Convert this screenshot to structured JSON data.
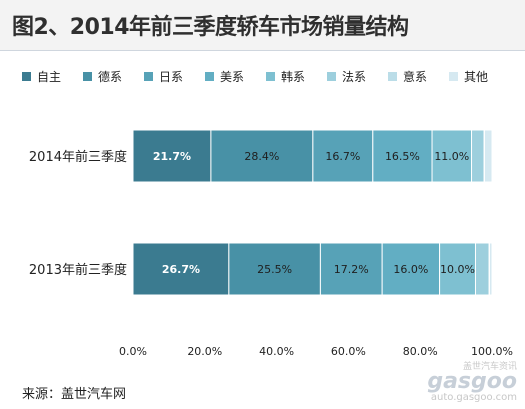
{
  "title": "图2、2014年前三季度轿车市场销量结构",
  "source": "来源：盖世汽车网",
  "watermark": {
    "logo": "gasgoo",
    "cn": "盖世汽车资讯",
    "url": "auto.gasgoo.com"
  },
  "colors": {
    "自主": "#3b7b90",
    "德系": "#4891a6",
    "日系": "#57a2b7",
    "美系": "#62aec3",
    "韩系": "#7ec0d1",
    "法系": "#9dcfdd",
    "意系": "#bbdde8",
    "其他": "#d6e9f1"
  },
  "chart_data": {
    "type": "bar",
    "orientation": "horizontal",
    "stacked": true,
    "categories": [
      "2014年前三季度",
      "2013年前三季度"
    ],
    "series": [
      {
        "name": "自主",
        "values": [
          21.7,
          26.7
        ],
        "labels": [
          "21.7%",
          "26.7%"
        ]
      },
      {
        "name": "德系",
        "values": [
          28.4,
          25.5
        ],
        "labels": [
          "28.4%",
          "25.5%"
        ]
      },
      {
        "name": "日系",
        "values": [
          16.7,
          17.2
        ],
        "labels": [
          "16.7%",
          "17.2%"
        ]
      },
      {
        "name": "美系",
        "values": [
          16.5,
          16.0
        ],
        "labels": [
          "16.5%",
          "16.0%"
        ]
      },
      {
        "name": "韩系",
        "values": [
          11.0,
          10.0
        ],
        "labels": [
          "11.0%",
          "10.0%"
        ]
      },
      {
        "name": "法系",
        "values": [
          3.5,
          3.8
        ],
        "labels": [
          "",
          ""
        ]
      },
      {
        "name": "意系",
        "values": [
          0.1,
          0.1
        ],
        "labels": [
          "",
          ""
        ]
      },
      {
        "name": "其他",
        "values": [
          2.1,
          0.7
        ],
        "labels": [
          "",
          ""
        ]
      }
    ],
    "xlim": [
      0,
      100
    ],
    "xticks": [
      "0.0%",
      "20.0%",
      "40.0%",
      "60.0%",
      "80.0%",
      "100.0%"
    ],
    "grid": false,
    "legend": "top"
  }
}
